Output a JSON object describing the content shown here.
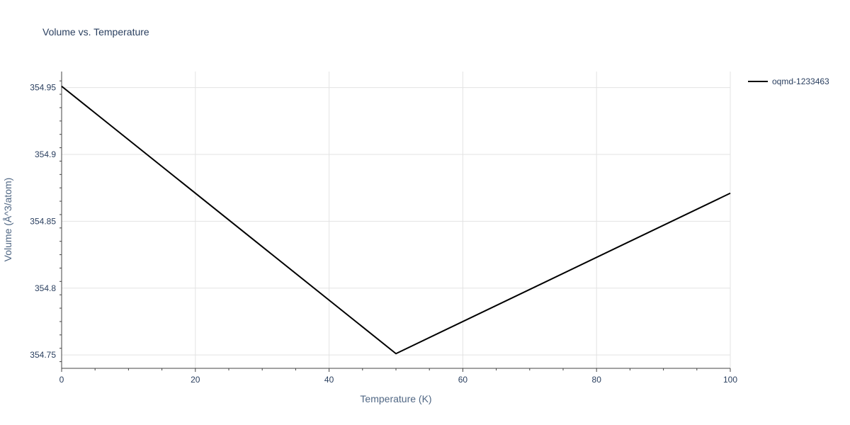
{
  "chart_data": {
    "type": "line",
    "title": "Volume vs. Temperature",
    "xlabel": "Temperature (K)",
    "ylabel": "Volume (Å^3/atom)",
    "xlim": [
      0,
      100
    ],
    "ylim": [
      354.74,
      354.962
    ],
    "xticks": [
      0,
      20,
      40,
      60,
      80,
      100
    ],
    "yticks": [
      354.75,
      354.8,
      354.85,
      354.9,
      354.95
    ],
    "ytick_labels": [
      "354.75",
      "354.8",
      "354.85",
      "354.9",
      "354.95"
    ],
    "grid": true,
    "legend_position": "top-right",
    "series": [
      {
        "name": "oqmd-1233463",
        "color": "#000000",
        "x": [
          0,
          50,
          100
        ],
        "y": [
          354.951,
          354.751,
          354.871
        ]
      }
    ]
  }
}
